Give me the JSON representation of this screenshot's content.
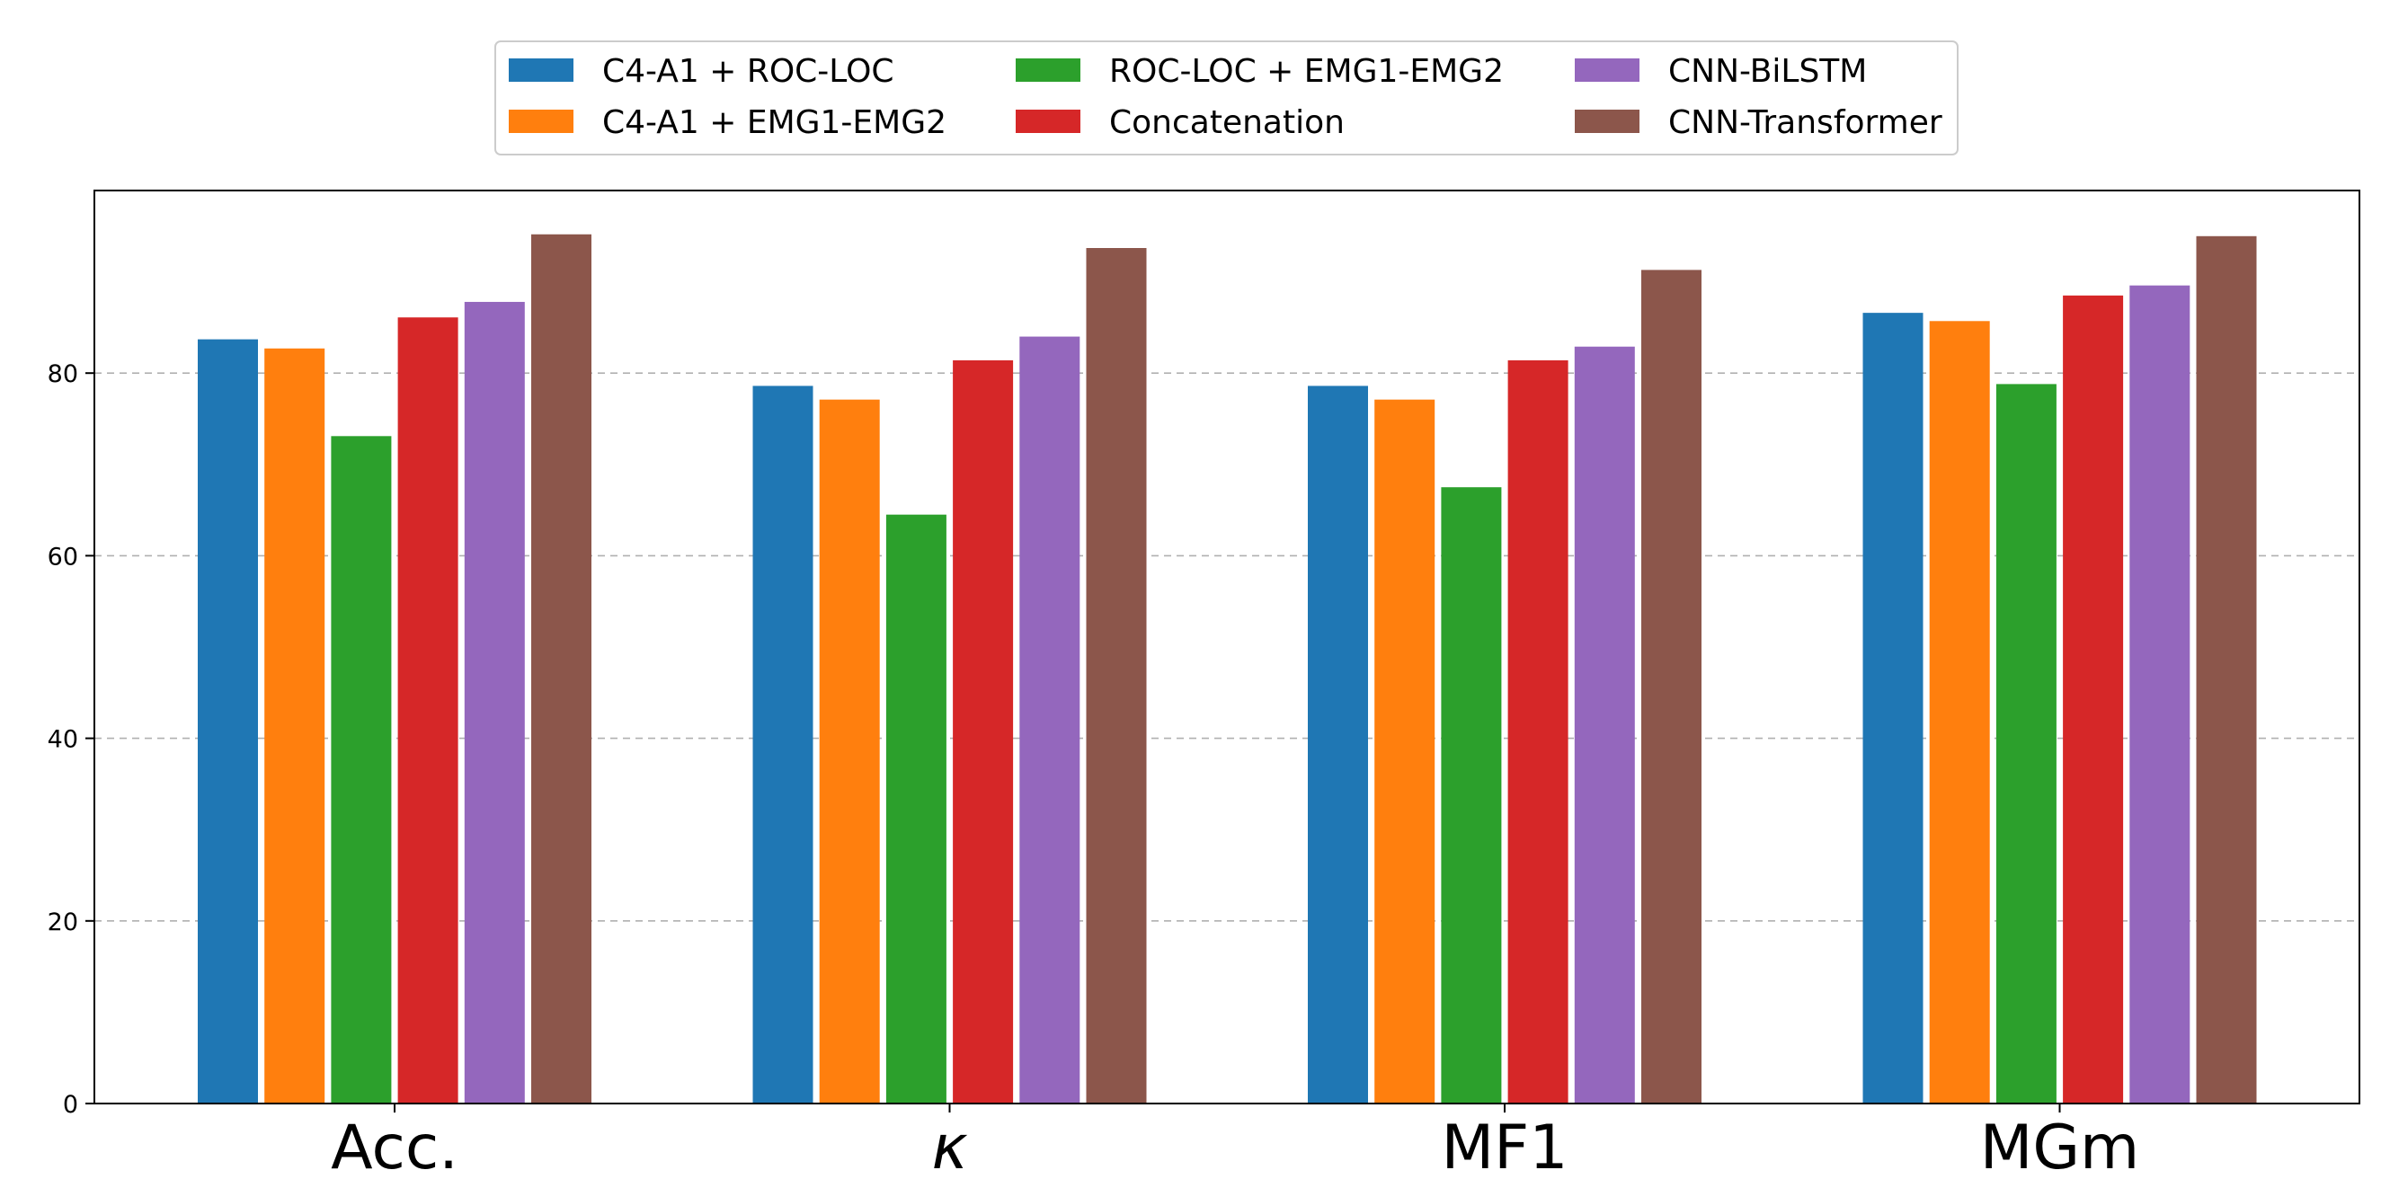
{
  "chart_data": {
    "type": "bar",
    "title": "",
    "xlabel": "",
    "ylabel": "",
    "categories": [
      "Acc.",
      "κ",
      "MF1",
      "MGm"
    ],
    "ylim": [
      0,
      100
    ],
    "yticks": [
      0,
      20,
      40,
      60,
      80
    ],
    "grid": {
      "y": true,
      "style": "dashed"
    },
    "legend": {
      "placement": "top-center, above plot",
      "columns": 3
    },
    "series": [
      {
        "name": "C4-A1 + ROC-LOC",
        "color": "#1f77b4",
        "values": [
          83.7,
          78.6,
          78.6,
          86.6
        ]
      },
      {
        "name": "C4-A1 + EMG1-EMG2",
        "color": "#ff7f0e",
        "values": [
          82.7,
          77.1,
          77.1,
          85.7
        ]
      },
      {
        "name": "ROC-LOC + EMG1-EMG2",
        "color": "#2ca02c",
        "values": [
          73.1,
          64.5,
          67.5,
          78.8
        ]
      },
      {
        "name": "Concatenation",
        "color": "#d62728",
        "values": [
          86.1,
          81.4,
          81.4,
          88.5
        ]
      },
      {
        "name": "CNN-BiLSTM",
        "color": "#9467bd",
        "values": [
          87.8,
          84.0,
          82.9,
          89.6
        ]
      },
      {
        "name": "CNN-Transformer",
        "color": "#8c564b",
        "values": [
          95.2,
          93.7,
          91.3,
          95.0
        ]
      }
    ]
  }
}
